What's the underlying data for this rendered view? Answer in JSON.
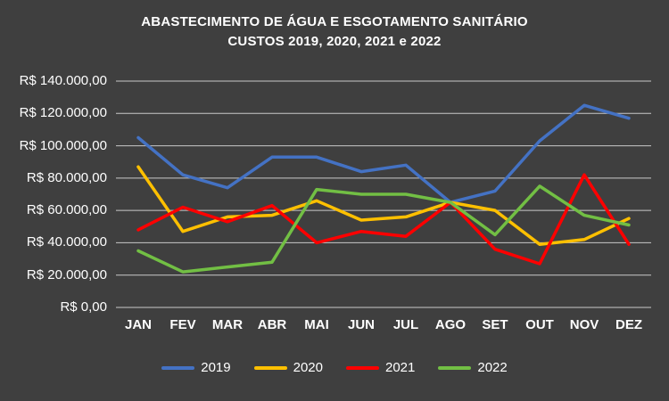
{
  "title": {
    "line1": "ABASTECIMENTO DE ÁGUA E ESGOTAMENTO SANITÁRIO",
    "line2": "CUSTOS 2019, 2020, 2021 e 2022"
  },
  "colors": {
    "background": "#3F3F3F",
    "text": "#FFFFFF",
    "gridline": "#C9C9C9"
  },
  "chart_data": {
    "type": "line",
    "title": "ABASTECIMENTO DE ÁGUA E ESGOTAMENTO SANITÁRIO CUSTOS 2019, 2020, 2021 e 2022",
    "categories": [
      "JAN",
      "FEV",
      "MAR",
      "ABR",
      "MAI",
      "JUN",
      "JUL",
      "AGO",
      "SET",
      "OUT",
      "NOV",
      "DEZ"
    ],
    "series": [
      {
        "name": "2019",
        "color": "#4472C4",
        "values": [
          105000,
          82000,
          74000,
          93000,
          93000,
          84000,
          88000,
          65000,
          72000,
          103000,
          125000,
          117000
        ]
      },
      {
        "name": "2020",
        "color": "#FFC000",
        "values": [
          87000,
          47000,
          56000,
          57000,
          66000,
          54000,
          56000,
          65000,
          60000,
          39000,
          42000,
          55000
        ]
      },
      {
        "name": "2021",
        "color": "#FF0000",
        "values": [
          48000,
          62000,
          53000,
          63000,
          40000,
          47000,
          44000,
          65000,
          36000,
          27000,
          82000,
          39000
        ]
      },
      {
        "name": "2022",
        "color": "#72BF44",
        "values": [
          35000,
          22000,
          25000,
          28000,
          73000,
          70000,
          70000,
          65000,
          45000,
          75000,
          57000,
          51000
        ]
      }
    ],
    "y_axis": {
      "min": 0,
      "max": 140000,
      "step": 20000,
      "tick_labels": [
        "R$ 140.000,00",
        "R$ 120.000,00",
        "R$ 100.000,00",
        "R$ 80.000,00",
        "R$ 60.000,00",
        "R$ 40.000,00",
        "R$ 20.000,00",
        "R$ 0,00"
      ]
    },
    "grid": true,
    "legend_position": "bottom",
    "legend": [
      "2019",
      "2020",
      "2021",
      "2022"
    ]
  }
}
